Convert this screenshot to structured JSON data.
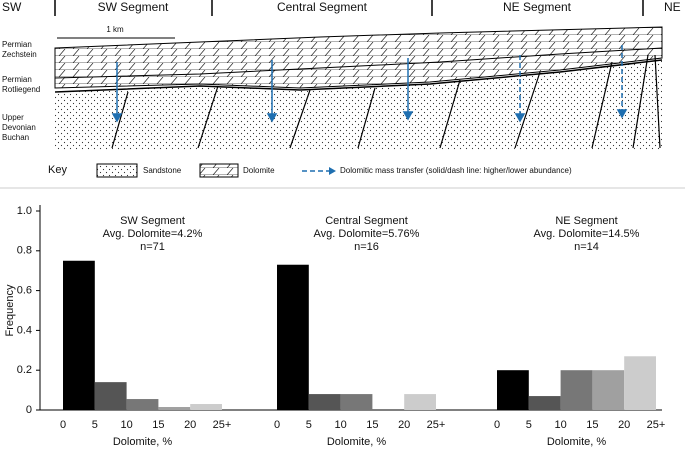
{
  "diagram": {
    "segment_labels": [
      "SW",
      "SW Segment",
      "Central Segment",
      "NE Segment",
      "NE"
    ],
    "scale_label": "1 km",
    "unit_labels": [
      [
        "Permian",
        "Zechstein"
      ],
      [
        "Permian",
        "Rotliegend"
      ],
      [
        "Upper",
        "Devonian",
        "Buchan"
      ]
    ],
    "key": {
      "title": "Key",
      "items": [
        "Sandstone",
        "Dolomite",
        "Dolomitic mass transfer (solid/dash line: higher/lower abundance)"
      ]
    }
  },
  "chart_data": [
    {
      "type": "histogram",
      "title": "SW Segment",
      "subtitle": "Avg. Dolomite=4.2%",
      "annotation": "n=71",
      "xlabel": "Dolomite, %",
      "ylabel": "Frequency",
      "bins": [
        0,
        5,
        10,
        15,
        20,
        25
      ],
      "values": [
        0.75,
        0.14,
        0.055,
        0.015,
        0.03
      ],
      "colors": [
        "#000000",
        "#555555",
        "#777777",
        "#a0a0a0",
        "#cccccc"
      ],
      "xlim": [
        0,
        25
      ],
      "xticks": [
        0,
        5,
        10,
        15,
        20,
        {
          "value": 25,
          "label": "25+"
        }
      ],
      "ylim": [
        0,
        1
      ],
      "yticks": [
        0,
        0.2,
        0.4,
        0.6,
        0.8,
        {
          "value": 1,
          "label": "1.0"
        }
      ]
    },
    {
      "type": "histogram",
      "title": "Central Segment",
      "subtitle": "Avg. Dolomite=5.76%",
      "annotation": "n=16",
      "xlabel": "Dolomite, %",
      "bins": [
        0,
        5,
        10,
        15,
        20,
        25
      ],
      "values": [
        0.73,
        0.08,
        0.08,
        0,
        0.08
      ],
      "colors": [
        "#000000",
        "#555555",
        "#777777",
        "#a0a0a0",
        "#cccccc"
      ],
      "xlim": [
        0,
        25
      ],
      "xticks": [
        0,
        5,
        10,
        15,
        20,
        {
          "value": 25,
          "label": "25+"
        }
      ],
      "ylim": [
        0,
        1
      ]
    },
    {
      "type": "histogram",
      "title": "NE Segment",
      "subtitle": "Avg. Dolomite=14.5%",
      "annotation": "n=14",
      "xlabel": "Dolomite, %",
      "bins": [
        0,
        5,
        10,
        15,
        20,
        25
      ],
      "values": [
        0.2,
        0.07,
        0.2,
        0.2,
        0.27
      ],
      "colors": [
        "#000000",
        "#555555",
        "#777777",
        "#a0a0a0",
        "#cccccc"
      ],
      "xlim": [
        0,
        25
      ],
      "xticks": [
        0,
        5,
        10,
        15,
        20,
        {
          "value": 25,
          "label": "25+"
        }
      ],
      "ylim": [
        0,
        1
      ]
    }
  ]
}
